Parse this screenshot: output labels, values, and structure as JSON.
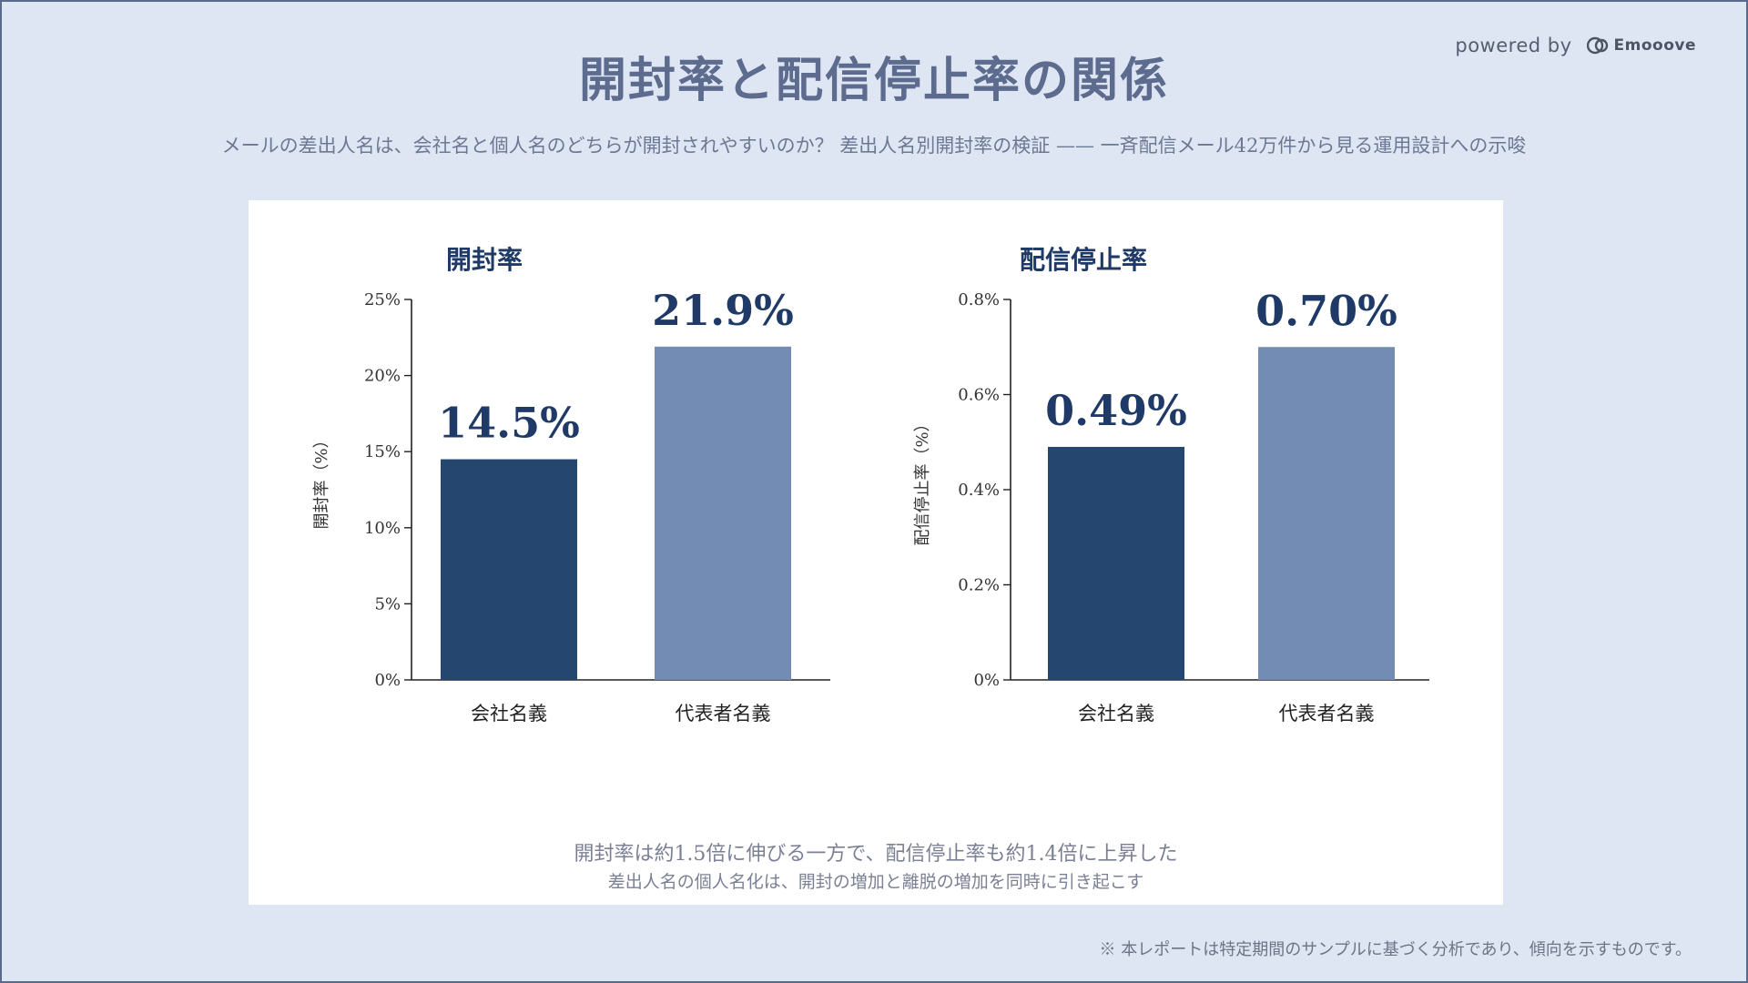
{
  "header": {
    "title": "開封率と配信停止率の関係",
    "subtitle": "メールの差出人名は、会社名と個人名のどちらが開封されやすいのか？ 差出人名別開封率の検証 —— 一斉配信メール42万件から見る運用設計への示唆",
    "powered_by": "powered by",
    "brand": "Emooove"
  },
  "colors": {
    "primary_bar": "#25466f",
    "secondary_bar": "#728cb4",
    "label": "#1f3a66",
    "background": "#dde6f2"
  },
  "chart_data": [
    {
      "type": "bar",
      "title": "開封率",
      "ylabel": "開封率（%）",
      "xlabel": "",
      "categories": [
        "会社名義",
        "代表者名義"
      ],
      "values": [
        14.5,
        21.9
      ],
      "data_labels": [
        "14.5%",
        "21.9%"
      ],
      "ylim": [
        0,
        25
      ],
      "yticks": [
        0,
        5,
        10,
        15,
        20,
        25
      ],
      "ytick_labels": [
        "0%",
        "5%",
        "10%",
        "15%",
        "20%",
        "25%"
      ],
      "grid": false
    },
    {
      "type": "bar",
      "title": "配信停止率",
      "ylabel": "配信停止率（%）",
      "xlabel": "",
      "categories": [
        "会社名義",
        "代表者名義"
      ],
      "values": [
        0.49,
        0.7
      ],
      "data_labels": [
        "0.49%",
        "0.70%"
      ],
      "ylim": [
        0,
        0.8
      ],
      "yticks": [
        0,
        0.2,
        0.4,
        0.6,
        0.8
      ],
      "ytick_labels": [
        "0%",
        "0.2%",
        "0.4%",
        "0.6%",
        "0.8%"
      ],
      "grid": false
    }
  ],
  "captions": {
    "main": "開封率は約1.5倍に伸びる一方で、配信停止率も約1.4倍に上昇した",
    "sub": "差出人名の個人名化は、開封の増加と離脱の増加を同時に引き起こす"
  },
  "footer": {
    "note": "※ 本レポートは特定期間のサンプルに基づく分析であり、傾向を示すものです。"
  }
}
